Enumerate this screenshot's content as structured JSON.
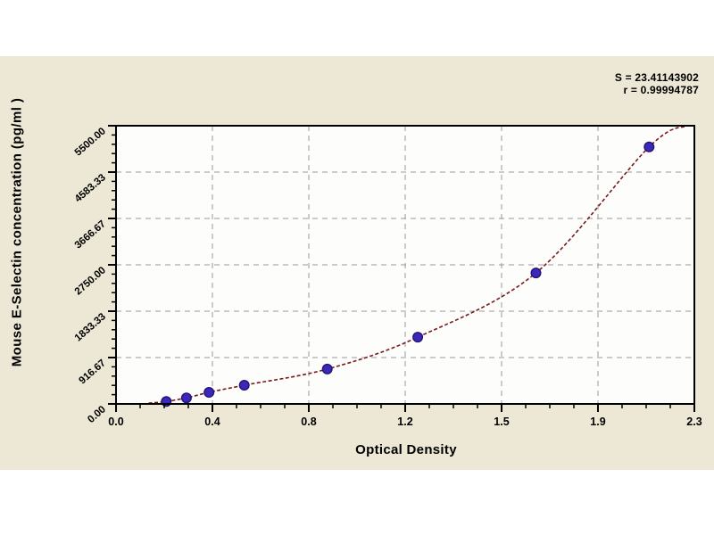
{
  "page": {
    "background": "#ffffff",
    "panel_color": "#ece8d5",
    "plot_background": "#fdfdfb",
    "frame_color": "#000000"
  },
  "annotation": {
    "s_line": "S = 23.41143902",
    "r_line": "r = 0.99994787"
  },
  "chart_data": {
    "type": "scatter",
    "title": "",
    "xlabel": "Optical Density",
    "ylabel": "Mouse E-Selectin concentration (pg/ml )",
    "xlim": [
      0,
      2.3
    ],
    "ylim": [
      0,
      5500
    ],
    "x_tick_values": [
      0,
      0.3833,
      0.7667,
      1.15,
      1.5333,
      1.9167,
      2.3
    ],
    "x_tick_labels": [
      "0.0",
      "0.4",
      "0.8",
      "1.2",
      "1.5",
      "1.9",
      "2.3"
    ],
    "x_minor_divisions": 4,
    "y_tick_values": [
      0,
      916.67,
      1833.33,
      2750,
      3666.67,
      4583.33,
      5500
    ],
    "y_tick_labels": [
      "0.00",
      "916.67",
      "1833.33",
      "2750.00",
      "3666.67",
      "4583.33",
      "5500.00"
    ],
    "y_minor_divisions": 5,
    "grid": {
      "show": true,
      "style": "dashed",
      "color": "#999999"
    },
    "legend": "none",
    "series": [
      {
        "name": "standard-points",
        "type": "scatter",
        "marker": "circle",
        "marker_fill": "#3b28b8",
        "marker_stroke": "#221378",
        "points": [
          {
            "od": 0.2,
            "conc": 50
          },
          {
            "od": 0.28,
            "conc": 120
          },
          {
            "od": 0.37,
            "conc": 230
          },
          {
            "od": 0.51,
            "conc": 370
          },
          {
            "od": 0.84,
            "conc": 690
          },
          {
            "od": 1.2,
            "conc": 1320
          },
          {
            "od": 1.67,
            "conc": 2590
          },
          {
            "od": 2.12,
            "conc": 5080
          }
        ]
      }
    ],
    "fit_curve": {
      "name": "fitted-standard-curve",
      "color": "#771a1a",
      "style": "dashed",
      "points": [
        [
          0.13,
          15
        ],
        [
          0.2,
          50
        ],
        [
          0.28,
          120
        ],
        [
          0.37,
          230
        ],
        [
          0.51,
          370
        ],
        [
          0.84,
          690
        ],
        [
          1.2,
          1320
        ],
        [
          1.67,
          2590
        ],
        [
          2.12,
          5080
        ],
        [
          2.27,
          5500
        ]
      ]
    },
    "stats": {
      "s": 23.41143902,
      "r": 0.99994787
    }
  }
}
